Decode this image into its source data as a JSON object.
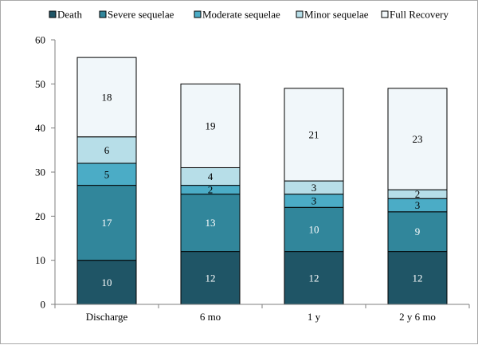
{
  "chart_data": {
    "type": "bar",
    "stacked": true,
    "categories": [
      "Discharge",
      "6 mo",
      "1 y",
      "2 y 6 mo"
    ],
    "series": [
      {
        "name": "Death",
        "color": "#1f5566",
        "values": [
          10,
          12,
          12,
          12
        ]
      },
      {
        "name": "Severe sequelae",
        "color": "#31869b",
        "values": [
          17,
          13,
          10,
          9
        ]
      },
      {
        "name": "Moderate sequelae",
        "color": "#4bacc6",
        "values": [
          5,
          2,
          3,
          3
        ]
      },
      {
        "name": "Minor sequelae",
        "color": "#b7dee8",
        "values": [
          6,
          4,
          3,
          2
        ]
      },
      {
        "name": "Full Recovery",
        "color": "#f1f7fa",
        "values": [
          18,
          19,
          21,
          23
        ]
      }
    ],
    "ylim": [
      0,
      60
    ],
    "yticks": [
      0,
      10,
      20,
      30,
      40,
      50,
      60
    ],
    "grid": false,
    "legend_position": "top",
    "label_colors": {
      "dark": "#ffffff",
      "light": "#000000"
    }
  }
}
